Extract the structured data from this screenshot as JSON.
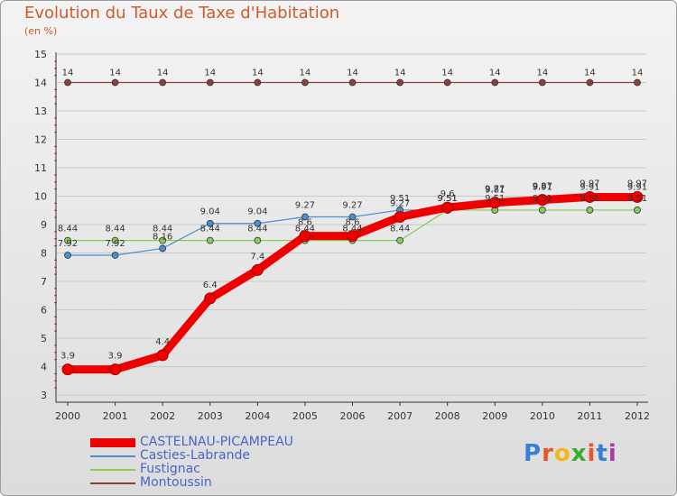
{
  "header": {
    "title": "Evolution du Taux de Taxe d'Habitation",
    "subtitle": "(en %)"
  },
  "chart_data": {
    "type": "line",
    "title": "Evolution du Taux de Taxe d'Habitation",
    "ylabel": "(en %)",
    "xlabel": "",
    "x": [
      "2000",
      "2001",
      "2002",
      "2003",
      "2004",
      "2005",
      "2006",
      "2007",
      "2008",
      "2009",
      "2010",
      "2011",
      "2012"
    ],
    "ylim": [
      3,
      15
    ],
    "yticks": [
      "3",
      "4",
      "5",
      "6",
      "7",
      "8",
      "9",
      "10",
      "11",
      "12",
      "13",
      "14",
      "15"
    ],
    "grid": "horizontal",
    "series": [
      {
        "name": "CASTELNAU-PICAMPEAU",
        "color": "#ee0000",
        "values": [
          3.9,
          3.9,
          4.4,
          6.4,
          7.4,
          8.6,
          8.6,
          9.27,
          9.6,
          9.77,
          9.87,
          9.97,
          9.97
        ],
        "labels": [
          "3.9",
          "3.9",
          "4.4",
          "6.4",
          "7.4",
          "8.6",
          "8.6",
          "9.27",
          "9.6",
          "9.77",
          "9.87",
          "9.97",
          "9.97"
        ]
      },
      {
        "name": "Casties-Labrande",
        "color": "#4a8fd0",
        "values": [
          7.92,
          7.92,
          8.16,
          9.04,
          9.04,
          9.27,
          9.27,
          9.51,
          9.51,
          9.81,
          9.91,
          9.91,
          9.91
        ],
        "labels": [
          "7.92",
          "7.92",
          "8.16",
          "9.04",
          "9.04",
          "9.27",
          "9.27",
          "9.51",
          "9.51",
          "9.81",
          "9.91",
          "9.91",
          "9.91"
        ]
      },
      {
        "name": "Fustignac",
        "color": "#88cc55",
        "values": [
          8.44,
          8.44,
          8.44,
          8.44,
          8.44,
          8.44,
          8.44,
          8.44,
          9.51,
          9.51,
          9.51,
          9.51,
          9.51
        ],
        "labels": [
          "8.44",
          "8.44",
          "8.44",
          "8.44",
          "8.44",
          "8.44",
          "8.44",
          "8.44",
          "9.51",
          "9.51",
          "9.51",
          "9.51",
          "9.51"
        ]
      },
      {
        "name": "Montoussin",
        "color": "#8b4040",
        "values": [
          14,
          14,
          14,
          14,
          14,
          14,
          14,
          14,
          14,
          14,
          14,
          14,
          14
        ],
        "labels": [
          "14",
          "14",
          "14",
          "14",
          "14",
          "14",
          "14",
          "14",
          "14",
          "14",
          "14",
          "14",
          "14"
        ]
      }
    ]
  },
  "logo": {
    "letters": [
      "P",
      "r",
      "o",
      "x",
      "i",
      "t",
      "i"
    ],
    "colors": [
      "#3a7fd5",
      "#e8552a",
      "#f2b71b",
      "#3aaa35",
      "#e8552a",
      "#3a7fd5",
      "#aa3aa8"
    ]
  }
}
